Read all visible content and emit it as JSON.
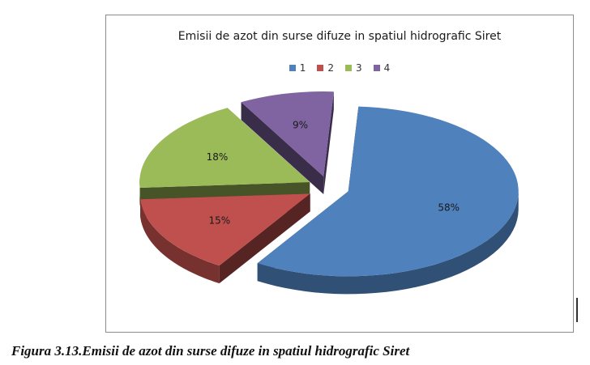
{
  "chart_data": {
    "type": "pie",
    "title": "Emisii de azot din surse difuze in spatiul hidrografic Siret",
    "legend_position": "top",
    "categories": [
      "1",
      "2",
      "3",
      "4"
    ],
    "values": [
      58,
      15,
      18,
      9
    ],
    "labels": [
      "58%",
      "15%",
      "18%",
      "9%"
    ],
    "colors": [
      "#4f81bd",
      "#c0504d",
      "#9bbb59",
      "#8064a2"
    ],
    "exploded": true,
    "three_d": true
  },
  "caption": "Figura 3.13.Emisii de azot din surse difuze in spatiul  hidrografic Siret"
}
